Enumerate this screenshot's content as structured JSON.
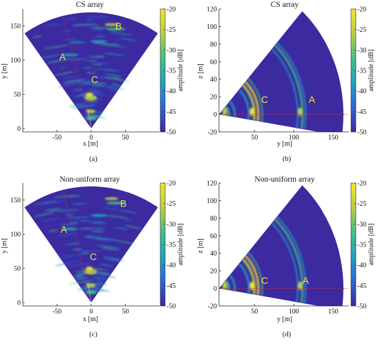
{
  "colors": {
    "low": "#3b2aa0",
    "mid1": "#2e66d8",
    "mid2": "#1fa3c0",
    "mid3": "#43c08a",
    "high1": "#b8d040",
    "high": "#f5e62a",
    "dashed": "#e03030"
  },
  "chart_data": [
    {
      "type": "heatmap",
      "title": "CS array",
      "panel_label": "(a)",
      "xlabel": "x [m]",
      "ylabel": "y [m]",
      "xlim": [
        -100,
        100
      ],
      "ylim": [
        -5,
        175
      ],
      "xticks": [
        "-50",
        "0",
        "50"
      ],
      "yticks": [
        "0",
        "50",
        "100",
        "150"
      ],
      "colorbar_label": "amplitude [dB]",
      "colorbar_range": [
        -50,
        -20
      ],
      "colorbar_ticks": [
        "-20",
        "-25",
        "-30",
        "-35",
        "-40",
        "-45",
        "-50"
      ],
      "targets": [
        {
          "label": "B",
          "x": 40,
          "y": 145
        },
        {
          "label": "A",
          "x": -42,
          "y": 100
        },
        {
          "label": "C",
          "x": 5,
          "y": 67
        }
      ]
    },
    {
      "type": "heatmap",
      "title": "CS array",
      "panel_label": "(b)",
      "xlabel": "y [m]",
      "ylabel": "z [m]",
      "xlim": [
        5,
        170
      ],
      "ylim": [
        -20,
        120
      ],
      "xticks": [
        "50",
        "100",
        "150"
      ],
      "yticks": [
        "-20",
        "0",
        "20",
        "40",
        "60",
        "80",
        "100",
        "120"
      ],
      "colorbar_label": "amplitude [dB]",
      "colorbar_range": [
        -50,
        -20
      ],
      "colorbar_ticks": [
        "-20",
        "-25",
        "-30",
        "-35",
        "-40",
        "-45",
        "-50"
      ],
      "targets": [
        {
          "label": "C",
          "x": 63,
          "y": 13
        },
        {
          "label": "A",
          "x": 123,
          "y": 13
        }
      ]
    },
    {
      "type": "heatmap",
      "title": "Non-uniform array",
      "panel_label": "(c)",
      "xlabel": "x [m]",
      "ylabel": "y [m]",
      "xlim": [
        -100,
        100
      ],
      "ylim": [
        -5,
        175
      ],
      "xticks": [
        "-50",
        "0",
        "50"
      ],
      "yticks": [
        "0",
        "50",
        "100",
        "150"
      ],
      "colorbar_label": "amplitude [dB]",
      "colorbar_range": [
        -50,
        -20
      ],
      "colorbar_ticks": [
        "-20",
        "-25",
        "-30",
        "-35",
        "-40",
        "-45",
        "-50"
      ],
      "targets": [
        {
          "label": "B",
          "x": 47,
          "y": 140
        },
        {
          "label": "A",
          "x": -40,
          "y": 102
        },
        {
          "label": "C",
          "x": 3,
          "y": 62
        }
      ]
    },
    {
      "type": "heatmap",
      "title": "Non-uniform array",
      "panel_label": "(d)",
      "xlabel": "y [m]",
      "ylabel": "z [m]",
      "xlim": [
        5,
        170
      ],
      "ylim": [
        -20,
        120
      ],
      "xticks": [
        "50",
        "100",
        "150"
      ],
      "yticks": [
        "-20",
        "0",
        "20",
        "40",
        "60",
        "80",
        "100",
        "120"
      ],
      "colorbar_label": "amplitude [dB]",
      "colorbar_range": [
        -50,
        -20
      ],
      "colorbar_ticks": [
        "-20",
        "-25",
        "-30",
        "-35",
        "-40",
        "-45",
        "-50"
      ],
      "targets": [
        {
          "label": "C",
          "x": 63,
          "y": 5
        },
        {
          "label": "A",
          "x": 115,
          "y": 5
        }
      ]
    }
  ]
}
